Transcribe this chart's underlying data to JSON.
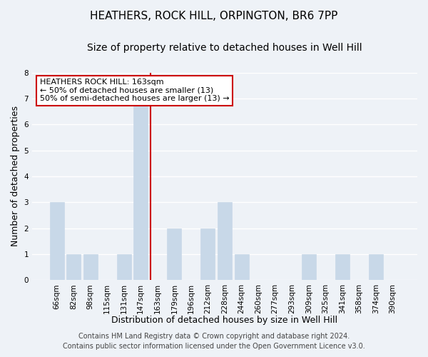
{
  "title": "HEATHERS, ROCK HILL, ORPINGTON, BR6 7PP",
  "subtitle": "Size of property relative to detached houses in Well Hill",
  "xlabel": "Distribution of detached houses by size in Well Hill",
  "ylabel": "Number of detached properties",
  "bin_labels": [
    "66sqm",
    "82sqm",
    "98sqm",
    "115sqm",
    "131sqm",
    "147sqm",
    "163sqm",
    "179sqm",
    "196sqm",
    "212sqm",
    "228sqm",
    "244sqm",
    "260sqm",
    "277sqm",
    "293sqm",
    "309sqm",
    "325sqm",
    "341sqm",
    "358sqm",
    "374sqm",
    "390sqm"
  ],
  "bin_values": [
    3,
    1,
    1,
    0,
    1,
    7,
    0,
    2,
    0,
    2,
    3,
    1,
    0,
    0,
    0,
    1,
    0,
    1,
    0,
    1,
    0
  ],
  "highlight_index": 6,
  "bar_color": "#c8d8e8",
  "highlight_line_color": "#cc0000",
  "ylim": [
    0,
    8
  ],
  "yticks": [
    0,
    1,
    2,
    3,
    4,
    5,
    6,
    7,
    8
  ],
  "annotation_text": "HEATHERS ROCK HILL: 163sqm\n← 50% of detached houses are smaller (13)\n50% of semi-detached houses are larger (13) →",
  "annotation_box_color": "#ffffff",
  "annotation_box_edge": "#cc0000",
  "footer1": "Contains HM Land Registry data © Crown copyright and database right 2024.",
  "footer2": "Contains public sector information licensed under the Open Government Licence v3.0.",
  "bg_color": "#eef2f7",
  "grid_color": "#ffffff",
  "title_fontsize": 11,
  "subtitle_fontsize": 10,
  "label_fontsize": 9,
  "tick_fontsize": 7.5,
  "footer_fontsize": 7,
  "annot_fontsize": 8
}
